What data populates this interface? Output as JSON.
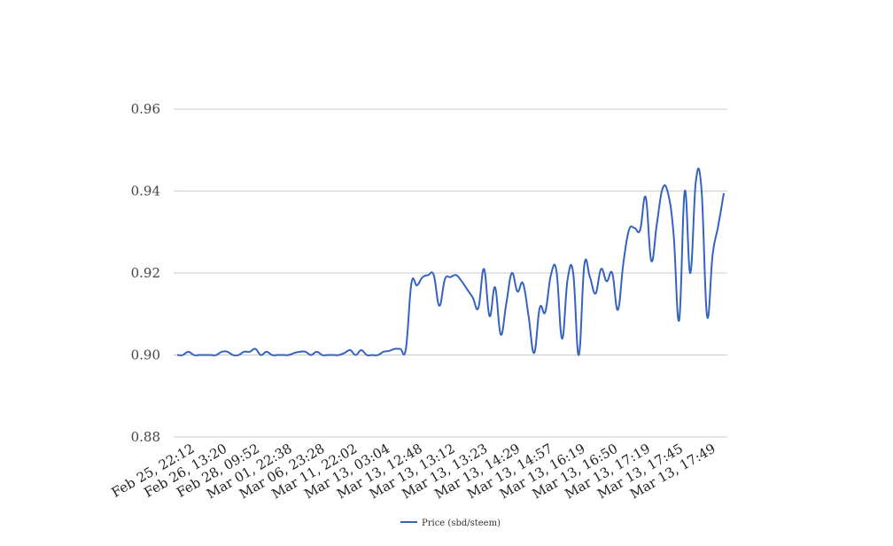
{
  "chart_data": {
    "type": "line",
    "title": "",
    "xlabel": "",
    "ylabel": "",
    "ylim": [
      0.88,
      0.96
    ],
    "yticks": [
      "0.96",
      "0.94",
      "0.92",
      "0.90",
      "0.88"
    ],
    "ytick_values": [
      0.96,
      0.94,
      0.92,
      0.9,
      0.88
    ],
    "xtick_labels": [
      "Feb 25, 22:12",
      "Feb 26, 13:20",
      "Feb 28, 09:52",
      "Mar 01, 22:38",
      "Mar 06, 23:28",
      "Mar 11, 22:02",
      "Mar 13, 03:04",
      "Mar 13, 12:48",
      "Mar 13, 13:12",
      "Mar 13, 13:23",
      "Mar 13, 14:29",
      "Mar 13, 14:57",
      "Mar 13, 16:19",
      "Mar 13, 16:50",
      "Mar 13, 17:19",
      "Mar 13, 17:45",
      "Mar 13, 17:49"
    ],
    "grid": true,
    "legend_position": "bottom",
    "series": [
      {
        "name": "Price (sbd/steem)",
        "color": "#3563c0",
        "values": [
          0.9,
          0.9,
          0.9008,
          0.9,
          0.9,
          0.9,
          0.9,
          0.9,
          0.9008,
          0.9008,
          0.9,
          0.9,
          0.9008,
          0.9008,
          0.9015,
          0.9,
          0.9008,
          0.9,
          0.9,
          0.9,
          0.9,
          0.9005,
          0.9008,
          0.9008,
          0.9,
          0.9008,
          0.9,
          0.9,
          0.9,
          0.9,
          0.9005,
          0.9012,
          0.9,
          0.9012,
          0.9,
          0.9,
          0.9,
          0.9008,
          0.901,
          0.9015,
          0.9015,
          0.9015,
          0.9175,
          0.917,
          0.919,
          0.9195,
          0.9195,
          0.912,
          0.9185,
          0.919,
          0.9195,
          0.918,
          0.916,
          0.914,
          0.9115,
          0.921,
          0.9095,
          0.9165,
          0.905,
          0.9125,
          0.92,
          0.9155,
          0.9175,
          0.9095,
          0.9005,
          0.9115,
          0.9105,
          0.9195,
          0.9205,
          0.904,
          0.9185,
          0.92,
          0.9,
          0.922,
          0.919,
          0.915,
          0.921,
          0.918,
          0.92,
          0.911,
          0.9225,
          0.9305,
          0.931,
          0.9305,
          0.9385,
          0.923,
          0.932,
          0.9405,
          0.9395,
          0.9295,
          0.9085,
          0.94,
          0.92,
          0.9425,
          0.9405,
          0.9095,
          0.9245,
          0.9315,
          0.9395
        ]
      }
    ]
  }
}
